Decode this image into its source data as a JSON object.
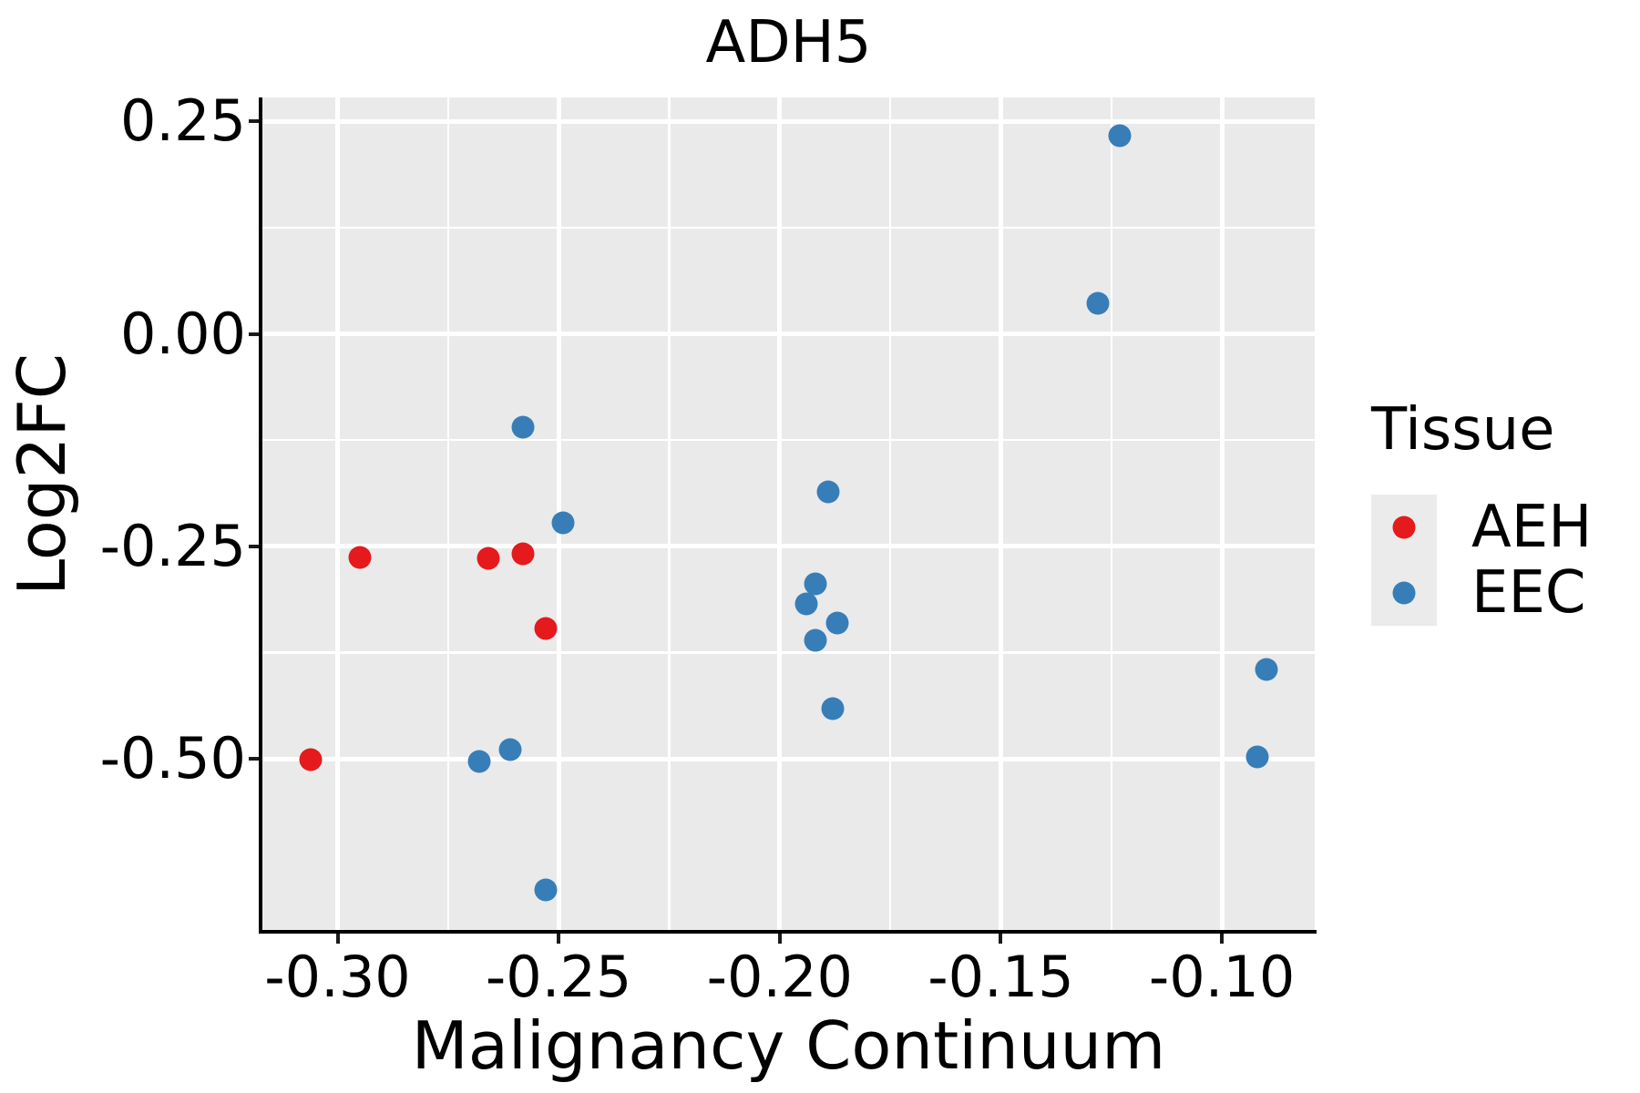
{
  "figure": {
    "title": "ADH5",
    "xlabel": "Malignancy Continuum",
    "ylabel": "Log2FC",
    "legend_title": "Tissue"
  },
  "colors": {
    "aeh": "#E41A1C",
    "eec": "#377EB8",
    "panel_background": "#EAEAEA",
    "gridline": "#FFFFFF",
    "spine": "#000000",
    "text": "#000000"
  },
  "chart_data": {
    "type": "scatter",
    "title": "ADH5",
    "xlabel": "Malignancy Continuum",
    "ylabel": "Log2FC",
    "legend_title": "Tissue",
    "legend_position": "right",
    "grid": true,
    "xlim": [
      -0.317,
      -0.079
    ],
    "ylim": [
      -0.701,
      0.278
    ],
    "x_ticks": [
      -0.3,
      -0.25,
      -0.2,
      -0.15,
      -0.1
    ],
    "x_tick_labels": [
      "-0.30",
      "-0.25",
      "-0.20",
      "-0.15",
      "-0.10"
    ],
    "y_ticks": [
      0.25,
      0.0,
      -0.25,
      -0.5
    ],
    "y_tick_labels": [
      "0.25",
      "0.00",
      "-0.25",
      "-0.50"
    ],
    "series": [
      {
        "name": "AEH",
        "color": "#E41A1C",
        "points": [
          [
            -0.295,
            -0.263
          ],
          [
            -0.266,
            -0.264
          ],
          [
            -0.258,
            -0.259
          ],
          [
            -0.253,
            -0.346
          ],
          [
            -0.306,
            -0.501
          ]
        ]
      },
      {
        "name": "EEC",
        "color": "#377EB8",
        "points": [
          [
            -0.258,
            -0.11
          ],
          [
            -0.249,
            -0.222
          ],
          [
            -0.268,
            -0.503
          ],
          [
            -0.261,
            -0.489
          ],
          [
            -0.253,
            -0.654
          ],
          [
            -0.189,
            -0.186
          ],
          [
            -0.192,
            -0.294
          ],
          [
            -0.194,
            -0.318
          ],
          [
            -0.187,
            -0.34
          ],
          [
            -0.192,
            -0.36
          ],
          [
            -0.188,
            -0.441
          ],
          [
            -0.123,
            0.233
          ],
          [
            -0.128,
            0.036
          ],
          [
            -0.09,
            -0.395
          ],
          [
            -0.092,
            -0.497
          ]
        ]
      }
    ]
  }
}
